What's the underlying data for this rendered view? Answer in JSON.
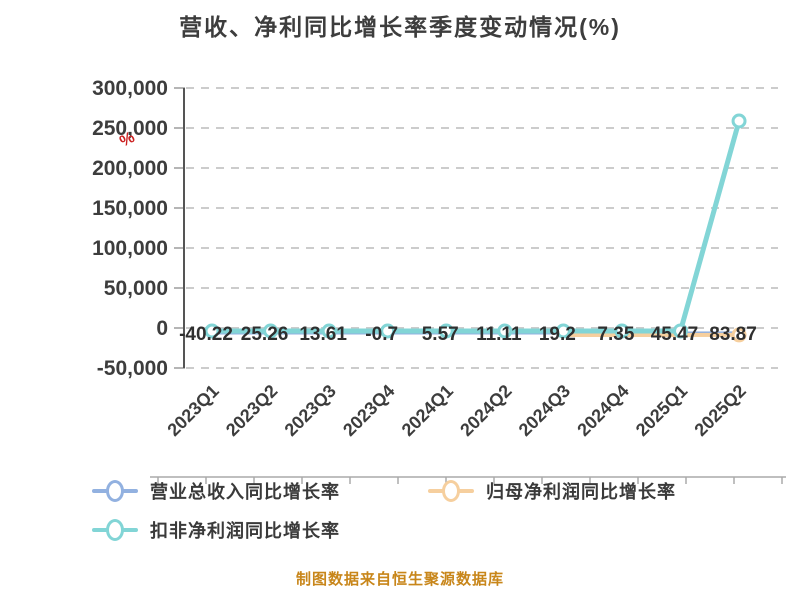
{
  "title": "营收、净利同比增长率季度变动情况(%)",
  "source_note": "制图数据来自恒生聚源数据库",
  "axis_unit_artifact": "%",
  "colors": {
    "revenue_blue": "#92b1e0",
    "net_profit_orange": "#f6cf9e",
    "deducted_teal": "#82d5d6",
    "grid": "#cccccc",
    "y_axis": "#555555",
    "tick": "#b5b5b5",
    "bottom_axis": "#aaaaaa",
    "text_dark": "#3d3d3d",
    "point_label": "#2f2f2f",
    "red_artifact": "#cc2222"
  },
  "legend": [
    {
      "label": "营业总收入同比增长率",
      "color": "#92b1e0"
    },
    {
      "label": "归母净利润同比增长率",
      "color": "#f6cf9e"
    },
    {
      "label": "扣非净利润同比增长率",
      "color": "#82d5d6"
    }
  ],
  "chart_data": {
    "type": "line",
    "title": "营收、净利同比增长率季度变动情况(%)",
    "categories": [
      "2023Q1",
      "2023Q2",
      "2023Q3",
      "2023Q4",
      "2024Q1",
      "2024Q2",
      "2024Q3",
      "2024Q4",
      "2025Q1",
      "2025Q2"
    ],
    "y_ticks": [
      300000,
      250000,
      200000,
      150000,
      100000,
      50000,
      0,
      -50000
    ],
    "ylim": [
      -50000,
      300000
    ],
    "grid": "dashed-horizontal",
    "legend_position": "bottom-left",
    "point_labels": [
      "-40.22",
      "25.26",
      "13.61",
      "-0.7",
      "5.57",
      "11.11",
      "19.2",
      "7.35",
      "45.47",
      "83.87"
    ],
    "point_labels_note": "overlapping data labels printed along the zero line, one visible per quarter",
    "series": [
      {
        "name": "营业总收入同比增长率",
        "color": "#92b1e0",
        "marker": "hidden",
        "visible_from_index": 0,
        "values": [
          -40.22,
          25.26,
          13.61,
          -0.7,
          5.57,
          11.11,
          19.2,
          7.35,
          45.47,
          83.87
        ]
      },
      {
        "name": "归母净利润同比增长率",
        "color": "#f6cf9e",
        "marker": "last",
        "visible_from_index": 6,
        "values": [
          0,
          0,
          0,
          0,
          0,
          0,
          0,
          0,
          0,
          83.87
        ]
      },
      {
        "name": "扣非净利润同比增长率",
        "color": "#82d5d6",
        "marker": "all",
        "visible_from_index": 0,
        "values": [
          0,
          0,
          0,
          0,
          0,
          0,
          0,
          0,
          45.47,
          260000
        ]
      }
    ],
    "series_note": "values near zero indistinguishable at axis scale; teal 2025Q2 value ~260,000 estimated from pixel position"
  }
}
